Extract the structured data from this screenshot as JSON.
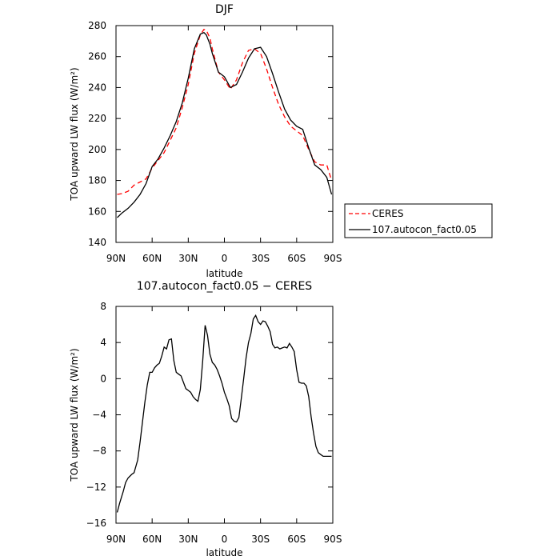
{
  "chart_data": [
    {
      "type": "line",
      "title": "DJF",
      "xlabel": "latitude",
      "ylabel": "TOA upward LW flux (W/m²)",
      "xlim": [
        90,
        -90
      ],
      "ylim": [
        140,
        280
      ],
      "xticks": [
        90,
        60,
        30,
        0,
        -30,
        -60,
        -90
      ],
      "xtick_labels": [
        "90N",
        "60N",
        "30N",
        "0",
        "30S",
        "60S",
        "90S"
      ],
      "yticks": [
        140,
        160,
        180,
        200,
        220,
        240,
        260,
        280
      ],
      "ytick_labels": [
        "140",
        "160",
        "180",
        "200",
        "220",
        "240",
        "260",
        "280"
      ],
      "legend_position": "right",
      "series": [
        {
          "name": "CERES",
          "color": "#ff0000",
          "dash": "dashed",
          "x": [
            89,
            85,
            80,
            75,
            70,
            65,
            60,
            55,
            50,
            45,
            40,
            35,
            30,
            25,
            20,
            17,
            15,
            12,
            10,
            5,
            0,
            -5,
            -10,
            -15,
            -20,
            -25,
            -30,
            -35,
            -40,
            -45,
            -50,
            -55,
            -60,
            -65,
            -70,
            -75,
            -80,
            -85,
            -89
          ],
          "y": [
            171,
            171.5,
            173,
            177,
            179,
            181,
            188,
            193,
            198,
            206,
            214,
            227,
            242,
            262,
            274,
            277.5,
            277,
            272,
            265,
            250,
            245,
            239,
            245,
            256,
            264,
            265,
            262,
            252,
            240,
            229,
            221,
            215,
            212,
            209,
            200,
            192,
            190,
            190,
            180
          ]
        },
        {
          "name": "107.autocon_fact0.05",
          "color": "#000000",
          "dash": "solid",
          "x": [
            89,
            85,
            80,
            75,
            70,
            65,
            60,
            55,
            50,
            45,
            40,
            35,
            30,
            25,
            20,
            17,
            15,
            12,
            10,
            5,
            0,
            -5,
            -10,
            -15,
            -20,
            -25,
            -30,
            -35,
            -40,
            -45,
            -50,
            -55,
            -60,
            -65,
            -70,
            -75,
            -80,
            -85,
            -89
          ],
          "y": [
            156,
            159,
            162,
            166,
            171,
            178,
            189,
            194,
            201,
            209,
            218,
            230,
            246,
            265,
            274.5,
            275.5,
            274,
            268,
            262,
            250,
            247,
            240,
            242,
            250,
            259,
            265,
            266,
            260,
            249,
            237,
            226,
            219,
            215,
            213,
            201,
            190,
            187,
            182,
            171
          ]
        }
      ]
    },
    {
      "type": "line",
      "title": "107.autocon_fact0.05 − CERES",
      "xlabel": "latitude",
      "ylabel": "TOA upward LW flux (W/m²)",
      "xlim": [
        90,
        -90
      ],
      "ylim": [
        -16,
        8
      ],
      "xticks": [
        90,
        60,
        30,
        0,
        -30,
        -60,
        -90
      ],
      "xtick_labels": [
        "90N",
        "60N",
        "30N",
        "0",
        "30S",
        "60S",
        "90S"
      ],
      "yticks": [
        -16,
        -12,
        -8,
        -4,
        0,
        4,
        8
      ],
      "ytick_labels": [
        "−16",
        "−12",
        "−8",
        "−4",
        "0",
        "4",
        "8"
      ],
      "series": [
        {
          "color": "#000000",
          "dash": "solid",
          "x": [
            89,
            87,
            84,
            82,
            80,
            77,
            75,
            72,
            70,
            68,
            66,
            64,
            62,
            60,
            58,
            56,
            54,
            52,
            50,
            48,
            46,
            44,
            42,
            40,
            38,
            36,
            34,
            32,
            30,
            28,
            26,
            24,
            22,
            20,
            18,
            16,
            14,
            12,
            10,
            8,
            6,
            4,
            2,
            0,
            -2,
            -4,
            -6,
            -8,
            -10,
            -12,
            -14,
            -16,
            -18,
            -20,
            -22,
            -24,
            -26,
            -28,
            -30,
            -32,
            -34,
            -36,
            -38,
            -40,
            -42,
            -44,
            -46,
            -48,
            -50,
            -52,
            -54,
            -56,
            -58,
            -60,
            -62,
            -64,
            -66,
            -68,
            -70,
            -72,
            -74,
            -76,
            -78,
            -80,
            -82,
            -84,
            -86,
            -88,
            -89
          ],
          "y": [
            -14.8,
            -13.8,
            -12.5,
            -11.5,
            -11.0,
            -10.6,
            -10.4,
            -9.0,
            -7.0,
            -4.8,
            -2.6,
            -0.7,
            0.7,
            0.7,
            1.2,
            1.5,
            1.7,
            2.5,
            3.5,
            3.3,
            4.3,
            4.4,
            2.0,
            0.7,
            0.5,
            0.3,
            -0.4,
            -1.1,
            -1.3,
            -1.5,
            -2.0,
            -2.3,
            -2.5,
            -1.2,
            2.0,
            5.9,
            4.8,
            2.7,
            1.8,
            1.5,
            1.0,
            0.3,
            -0.5,
            -1.5,
            -2.2,
            -3.0,
            -4.4,
            -4.7,
            -4.8,
            -4.3,
            -2.2,
            0.0,
            2.3,
            4.0,
            5.0,
            6.6,
            7.0,
            6.3,
            6.0,
            6.4,
            6.3,
            5.8,
            5.2,
            3.8,
            3.4,
            3.5,
            3.3,
            3.4,
            3.5,
            3.4,
            3.9,
            3.5,
            3.0,
            1.0,
            -0.4,
            -0.5,
            -0.5,
            -0.8,
            -2.0,
            -4.2,
            -6.0,
            -7.5,
            -8.2,
            -8.4,
            -8.6,
            -8.6,
            -8.6,
            -8.6,
            -8.6
          ]
        }
      ]
    }
  ]
}
